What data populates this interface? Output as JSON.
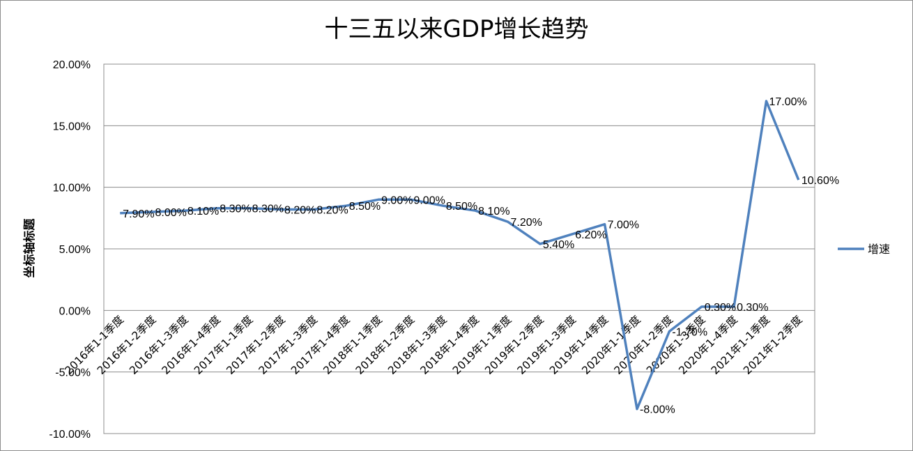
{
  "chart_data": {
    "type": "line",
    "title": "十三五以来GDP增长趋势",
    "ylabel": "坐标轴标题",
    "xlabel": "",
    "ylim": [
      -10,
      20
    ],
    "ytick_step": 5,
    "ytick_labels": [
      "-10.00%",
      "-5.00%",
      "0.00%",
      "5.00%",
      "10.00%",
      "15.00%",
      "20.00%"
    ],
    "grid": true,
    "legend_position": "right",
    "line_color": "#4f81bd",
    "categories": [
      "2016年1-1季度",
      "2016年1-2季度",
      "2016年1-3季度",
      "2016年1-4季度",
      "2017年1-1季度",
      "2017年1-2季度",
      "2017年1-3季度",
      "2017年1-4季度",
      "2018年1-1季度",
      "2018年1-2季度",
      "2018年1-3季度",
      "2018年1-4季度",
      "2019年1-1季度",
      "2019年1-2季度",
      "2019年1-3季度",
      "2019年1-4季度",
      "2020年1-1季度",
      "2020年1-2季度",
      "2020年1-3季度",
      "2020年1-4季度",
      "2021年1-1季度",
      "2021年1-2季度"
    ],
    "series": [
      {
        "name": "增速",
        "values": [
          7.9,
          8.0,
          8.1,
          8.3,
          8.3,
          8.2,
          8.2,
          8.5,
          9.0,
          9.0,
          8.5,
          8.1,
          7.2,
          5.4,
          6.2,
          7.0,
          -8.0,
          -1.7,
          0.3,
          0.3,
          17.0,
          10.6
        ],
        "labels": [
          "7.90%",
          "8.00%",
          "8.10%",
          "8.30%",
          "8.30%",
          "8.20%",
          "8.20%",
          "8.50%",
          "9.00%",
          "9.00%",
          "8.50%",
          "8.10%",
          "7.20%",
          "5.40%",
          "6.20%",
          "7.00%",
          "-8.00%",
          "-1.70%",
          "0.30%",
          "0.30%",
          "17.00%",
          "10.60%"
        ]
      }
    ]
  }
}
